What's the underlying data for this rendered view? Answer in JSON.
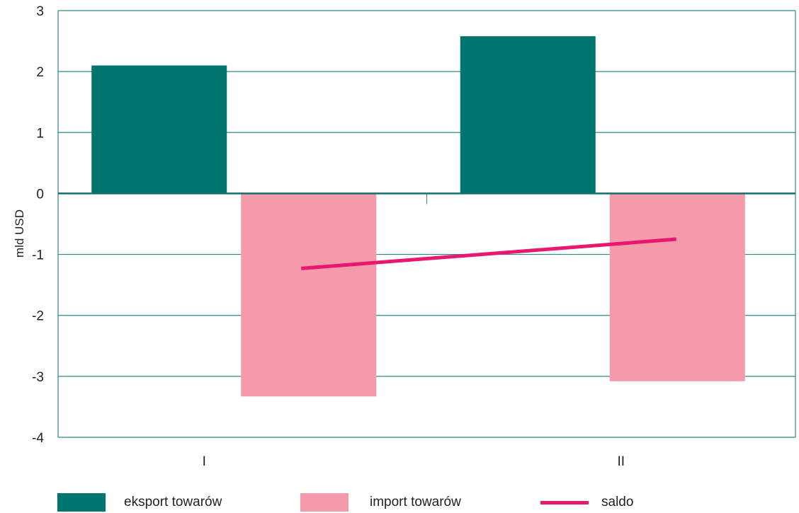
{
  "chart_data": {
    "type": "bar",
    "categories": [
      "I",
      "II"
    ],
    "ylabel": "mld USD",
    "ylim": [
      -4,
      3
    ],
    "yticks": [
      3,
      2,
      1,
      0,
      -1,
      -2,
      -3,
      -4
    ],
    "grid": true,
    "legend_position": "bottom",
    "series": [
      {
        "name": "eksport towarów",
        "type": "bar",
        "color": "#007570",
        "values": [
          2.1,
          2.58
        ]
      },
      {
        "name": "import towarów",
        "type": "bar",
        "color": "#f49aaa",
        "values": [
          -3.33,
          -3.08
        ]
      },
      {
        "name": "saldo",
        "type": "line",
        "color": "#e8176f",
        "values": [
          -1.23,
          -0.75
        ]
      }
    ]
  }
}
